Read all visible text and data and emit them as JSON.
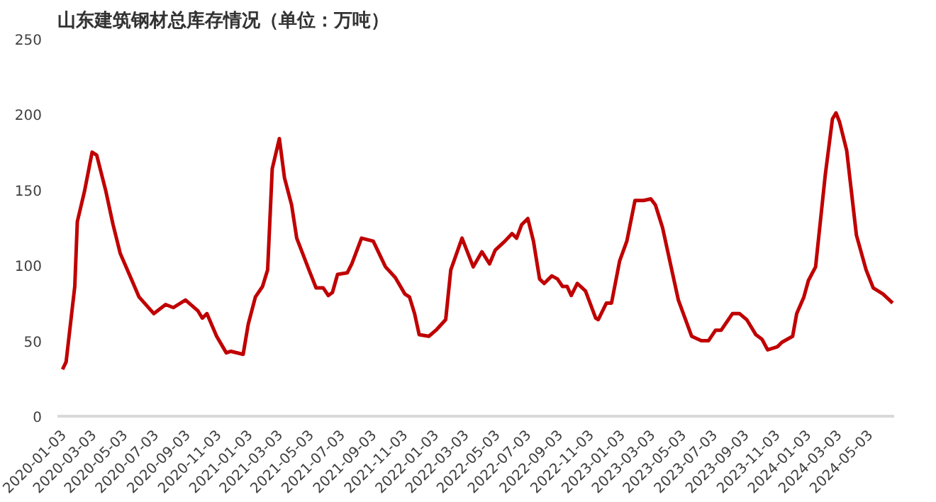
{
  "chart_data": {
    "type": "line",
    "title": "山东建筑钢材总库存情况（单位：万吨）",
    "x": [
      "2020-01-03",
      "2020-01-10",
      "2020-01-27",
      "2020-02-01",
      "2020-02-15",
      "2020-03-01",
      "2020-03-10",
      "2020-03-28",
      "2020-04-11",
      "2020-04-25",
      "2020-05-18",
      "2020-06-01",
      "2020-06-30",
      "2020-07-23",
      "2020-08-07",
      "2020-08-31",
      "2020-09-24",
      "2020-10-03",
      "2020-10-12",
      "2020-10-31",
      "2020-11-19",
      "2020-11-28",
      "2020-12-22",
      "2021-01-01",
      "2021-01-15",
      "2021-01-29",
      "2021-02-08",
      "2021-02-17",
      "2021-03-03",
      "2021-03-13",
      "2021-03-27",
      "2021-04-06",
      "2021-04-30",
      "2021-05-14",
      "2021-05-28",
      "2021-06-07",
      "2021-06-15",
      "2021-06-25",
      "2021-07-14",
      "2021-07-23",
      "2021-08-11",
      "2021-09-03",
      "2021-09-27",
      "2021-10-16",
      "2021-11-04",
      "2021-11-13",
      "2021-11-23",
      "2021-12-02",
      "2021-12-21",
      "2022-01-04",
      "2022-01-23",
      "2022-02-02",
      "2022-02-24",
      "2022-03-18",
      "2022-04-04",
      "2022-04-19",
      "2022-04-30",
      "2022-05-19",
      "2022-06-02",
      "2022-06-11",
      "2022-06-21",
      "2022-07-03",
      "2022-07-14",
      "2022-07-26",
      "2022-08-04",
      "2022-08-19",
      "2022-08-30",
      "2022-09-09",
      "2022-09-18",
      "2022-09-26",
      "2022-10-08",
      "2022-10-24",
      "2022-11-13",
      "2022-11-18",
      "2022-12-04",
      "2022-12-14",
      "2022-12-30",
      "2023-01-13",
      "2023-01-29",
      "2023-02-15",
      "2023-03-01",
      "2023-03-10",
      "2023-03-24",
      "2023-04-24",
      "2023-05-20",
      "2023-06-08",
      "2023-06-22",
      "2023-07-06",
      "2023-07-17",
      "2023-08-08",
      "2023-08-22",
      "2023-09-05",
      "2023-09-23",
      "2023-10-05",
      "2023-10-16",
      "2023-11-04",
      "2023-11-13",
      "2023-12-04",
      "2023-12-12",
      "2023-12-26",
      "2024-01-04",
      "2024-01-18",
      "2024-02-06",
      "2024-02-20",
      "2024-02-27",
      "2024-03-05",
      "2024-03-19",
      "2024-04-07",
      "2024-04-26",
      "2024-05-10",
      "2024-05-29",
      "2024-06-17"
    ],
    "series": [
      {
        "color": "#c00000",
        "values": [
          31,
          36,
          86,
          129,
          149,
          175,
          173,
          149,
          127,
          108,
          90,
          79,
          68,
          74,
          72,
          77,
          70,
          65,
          68,
          53,
          42,
          43,
          41,
          61,
          79,
          86,
          97,
          164,
          184,
          158,
          140,
          118,
          97,
          85,
          85,
          80,
          82,
          94,
          95,
          101,
          118,
          116,
          99,
          92,
          81,
          79,
          68,
          54,
          53,
          57,
          64,
          97,
          118,
          99,
          109,
          101,
          110,
          116,
          121,
          118,
          127,
          131,
          116,
          91,
          88,
          93,
          91,
          86,
          86,
          80,
          88,
          83,
          65,
          64,
          75,
          75,
          103,
          116,
          143,
          143,
          144,
          140,
          125,
          77,
          53,
          50,
          50,
          57,
          57,
          68,
          68,
          64,
          54,
          51,
          44,
          46,
          49,
          53,
          68,
          79,
          90,
          99,
          160,
          197,
          201,
          195,
          176,
          120,
          97,
          85,
          81,
          75
        ]
      }
    ],
    "xlim": [
      "2019-12-24",
      "2024-06-20"
    ],
    "xticks": [
      "2020-01-03",
      "2020-03-03",
      "2020-05-03",
      "2020-07-03",
      "2020-09-03",
      "2020-11-03",
      "2021-01-03",
      "2021-03-03",
      "2021-05-03",
      "2021-07-03",
      "2021-09-03",
      "2021-11-03",
      "2022-01-03",
      "2022-03-03",
      "2022-05-03",
      "2022-07-03",
      "2022-09-03",
      "2022-11-03",
      "2023-01-03",
      "2023-03-03",
      "2023-05-03",
      "2023-07-03",
      "2023-09-03",
      "2023-11-03",
      "2024-01-03",
      "2024-03-03",
      "2024-05-03"
    ],
    "ylim": [
      0,
      250
    ],
    "yticks": [
      0,
      50,
      100,
      150,
      200,
      250
    ],
    "grid": false,
    "marker": "none",
    "line_style": "solid"
  }
}
